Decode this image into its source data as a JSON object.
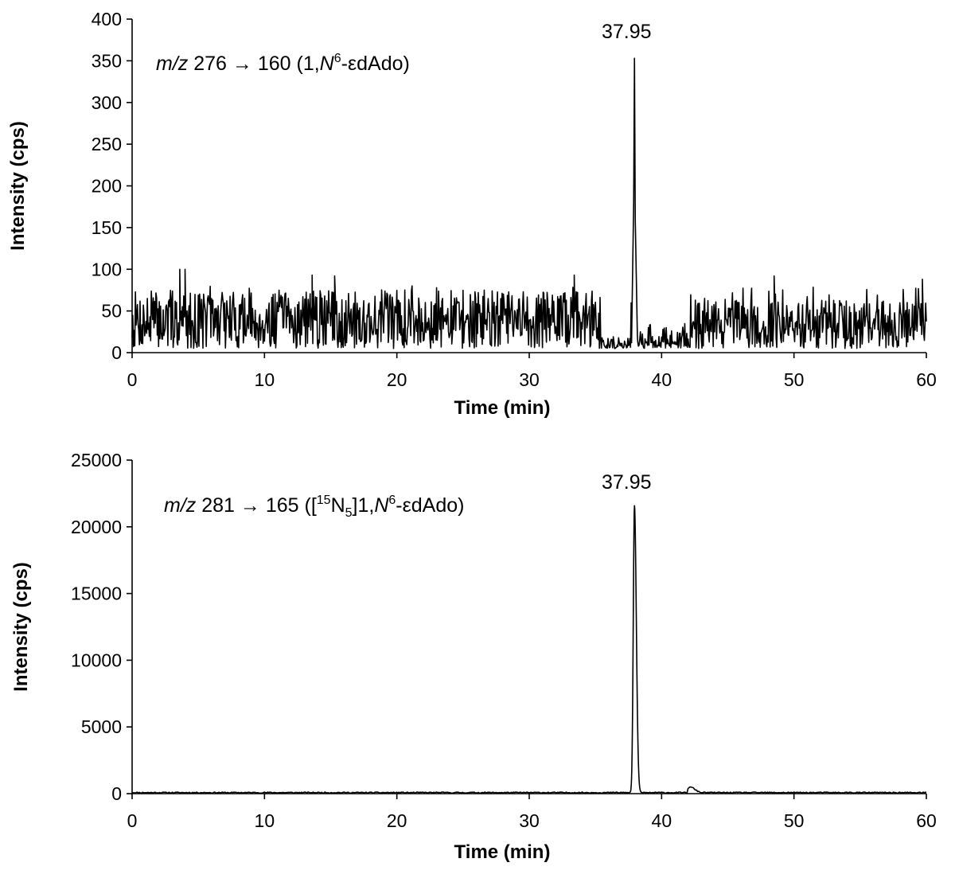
{
  "colors": {
    "trace": "#000000",
    "axis": "#000000",
    "background": "#ffffff"
  },
  "chart_data": [
    {
      "type": "line",
      "xlabel": "Time (min)",
      "ylabel": "Intensity (cps)",
      "xlim": [
        0,
        60
      ],
      "ylim": [
        0,
        400
      ],
      "xticks": [
        "0",
        "10",
        "20",
        "30",
        "40",
        "50",
        "60"
      ],
      "yticks": [
        "0",
        "50",
        "100",
        "150",
        "200",
        "250",
        "300",
        "350",
        "400"
      ],
      "grid": false,
      "legend": "none",
      "transition": {
        "prefix": "m/z",
        "text_1": " 276 ",
        "arrow": "→",
        "text_2": " 160 (1,",
        "n": "N",
        "n_sup": "6",
        "analyte": "-εdAdo)"
      },
      "peak_label": "37.95",
      "trace": {
        "noise_segments": [
          {
            "x": [
              0,
              35.4
            ],
            "y_min": 5,
            "y_max": 100,
            "typical": 33
          },
          {
            "x": [
              35.4,
              37.7
            ],
            "y_min": 5,
            "y_max": 20,
            "typical": 10
          },
          {
            "x": [
              38.3,
              42.2
            ],
            "y_min": 5,
            "y_max": 35,
            "typical": 10
          },
          {
            "x": [
              42.2,
              60
            ],
            "y_min": 5,
            "y_max": 88,
            "typical": 33
          }
        ],
        "spikes": [
          {
            "x": 3.6,
            "y": 100
          },
          {
            "x": 4.0,
            "y": 100
          },
          {
            "x": 13.6,
            "y": 93
          },
          {
            "x": 15.3,
            "y": 92
          },
          {
            "x": 33.4,
            "y": 93
          },
          {
            "x": 48.5,
            "y": 92
          },
          {
            "x": 59.7,
            "y": 88
          }
        ],
        "peak": {
          "x": 37.95,
          "y": 353,
          "width": 0.22
        }
      }
    },
    {
      "type": "line",
      "xlabel": "Time (min)",
      "ylabel": "Intensity (cps)",
      "xlim": [
        0,
        60
      ],
      "ylim": [
        0,
        25000
      ],
      "xticks": [
        "0",
        "10",
        "20",
        "30",
        "40",
        "50",
        "60"
      ],
      "yticks": [
        "0",
        "5000",
        "10000",
        "15000",
        "20000",
        "25000"
      ],
      "grid": false,
      "legend": "none",
      "transition": {
        "prefix": "m/z",
        "text_1": " 281 ",
        "arrow": "→",
        "text_2": " 165 ([",
        "iso_sup": "15",
        "iso_el": "N",
        "iso_sub": "5",
        "text_3": "]1,",
        "n": "N",
        "n_sup": "6",
        "analyte": "-εdAdo)"
      },
      "peak_label": "37.95",
      "trace": {
        "baseline": 80,
        "noise": 40,
        "peak": {
          "x": 37.95,
          "y": 21500,
          "width": 0.3
        },
        "bump": {
          "x": 42.2,
          "y": 400
        }
      }
    }
  ]
}
